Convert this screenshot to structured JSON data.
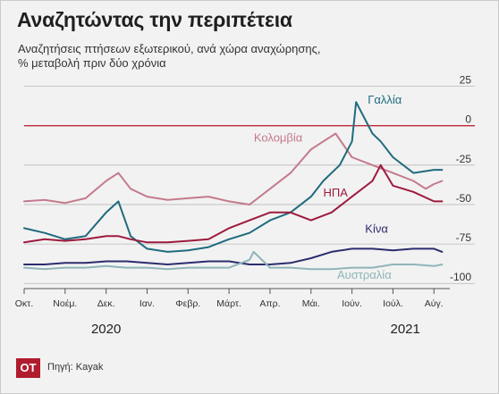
{
  "chart_data": {
    "type": "line",
    "title": "Αναζητώντας την περιπέτεια",
    "subtitle_lines": [
      "Αναζητήσεις πτήσεων εξωτερικού, ανά χώρα αναχώρησης,",
      "% μεταβολή πριν δύο χρόνια"
    ],
    "x_months": [
      "Οκτ.",
      "Νοέμ.",
      "Δεκ.",
      "Ιαν.",
      "Φεβρ.",
      "Μάρτ.",
      "Απρ.",
      "Μάι.",
      "Ιούν.",
      "Ιούλ.",
      "Αύγ."
    ],
    "x_years": [
      {
        "label": "2020",
        "at_month_index": 2
      },
      {
        "label": "2021",
        "at_month_index": 9.3
      }
    ],
    "y_ticks": [
      "25",
      "0",
      "-25",
      "-50",
      "-75",
      "-100"
    ],
    "y_tick_values": [
      25,
      0,
      -25,
      -50,
      -75,
      -100
    ],
    "ylim": [
      -101,
      27
    ],
    "xlim": [
      0,
      10.3
    ],
    "zero_line_color": "#c0283a",
    "series": [
      {
        "name": "Κολομβία",
        "color": "#c47a8c",
        "x": [
          0,
          0.5,
          1,
          1.5,
          2,
          2.3,
          2.6,
          3,
          3.5,
          4,
          4.5,
          5,
          5.5,
          6,
          6.5,
          7,
          7.3,
          7.6,
          8,
          8.5,
          9,
          9.5,
          9.8,
          10,
          10.2
        ],
        "y": [
          -48,
          -47,
          -49,
          -46,
          -35,
          -30,
          -40,
          -45,
          -47,
          -46,
          -45,
          -48,
          -50,
          -40,
          -30,
          -15,
          -10,
          -5,
          -20,
          -25,
          -30,
          -35,
          -40,
          -37,
          -35
        ]
      },
      {
        "name": "Γαλλία",
        "color": "#1f6b7e",
        "x": [
          0,
          0.5,
          1,
          1.5,
          2,
          2.3,
          2.6,
          3,
          3.5,
          4,
          4.5,
          5,
          5.5,
          6,
          6.5,
          7,
          7.3,
          7.7,
          8,
          8.1,
          8.5,
          8.7,
          9,
          9.5,
          10,
          10.2
        ],
        "y": [
          -65,
          -68,
          -72,
          -70,
          -55,
          -48,
          -70,
          -78,
          -80,
          -79,
          -77,
          -72,
          -68,
          -60,
          -55,
          -45,
          -35,
          -25,
          -10,
          15,
          -5,
          -10,
          -20,
          -30,
          -28,
          -28
        ]
      },
      {
        "name": "ΗΠΑ",
        "color": "#9e1a3e",
        "x": [
          0,
          0.5,
          1,
          1.5,
          2,
          2.3,
          2.6,
          3,
          3.5,
          4,
          4.5,
          5,
          5.5,
          6,
          6.5,
          7,
          7.5,
          8,
          8.5,
          8.7,
          9,
          9.5,
          10,
          10.2
        ],
        "y": [
          -74,
          -72,
          -73,
          -72,
          -70,
          -70,
          -72,
          -74,
          -74,
          -73,
          -72,
          -65,
          -60,
          -55,
          -55,
          -60,
          -55,
          -45,
          -35,
          -25,
          -38,
          -42,
          -48,
          -48
        ]
      },
      {
        "name": "Κίνα",
        "color": "#2c2d6e",
        "x": [
          0,
          0.5,
          1,
          1.5,
          2,
          2.5,
          3,
          3.5,
          4,
          4.5,
          5,
          5.5,
          6,
          6.5,
          7,
          7.5,
          8,
          8.5,
          9,
          9.5,
          10,
          10.2
        ],
        "y": [
          -88,
          -88,
          -87,
          -87,
          -86,
          -86,
          -87,
          -88,
          -87,
          -86,
          -86,
          -88,
          -88,
          -87,
          -84,
          -80,
          -78,
          -78,
          -79,
          -78,
          -78,
          -80
        ]
      },
      {
        "name": "Αυστραλία",
        "color": "#8fb5b9",
        "x": [
          0,
          0.5,
          1,
          1.5,
          2,
          2.5,
          3,
          3.5,
          4,
          4.5,
          5,
          5.5,
          5.6,
          6,
          6.5,
          7,
          7.5,
          8,
          8.5,
          9,
          9.5,
          10,
          10.2
        ],
        "y": [
          -90,
          -91,
          -90,
          -90,
          -89,
          -90,
          -90,
          -91,
          -90,
          -90,
          -90,
          -85,
          -80,
          -90,
          -90,
          -91,
          -91,
          -90,
          -90,
          -88,
          -88,
          -89,
          -88
        ]
      }
    ],
    "series_labels": [
      {
        "name": "Γαλλία",
        "x": 8.8,
        "y": 14
      },
      {
        "name": "Κολομβία",
        "x": 6.2,
        "y": -10
      },
      {
        "name": "ΗΠΑ",
        "x": 7.6,
        "y": -45
      },
      {
        "name": "Κίνα",
        "x": 8.6,
        "y": -68
      },
      {
        "name": "Αυστραλία",
        "x": 8.3,
        "y": -97
      }
    ]
  },
  "footer": {
    "logo": "OT",
    "source": "Πηγή: Kayak"
  }
}
